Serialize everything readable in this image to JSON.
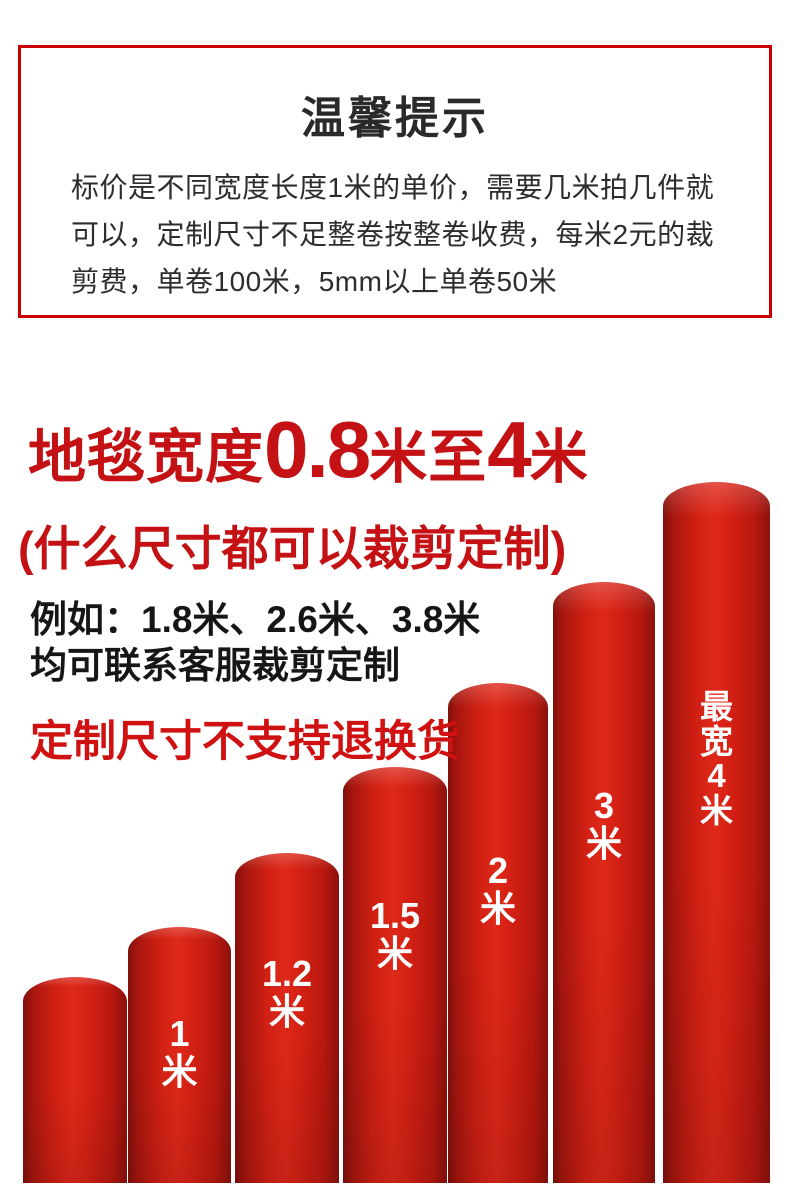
{
  "notice": {
    "title": "温馨提示",
    "body": "标价是不同宽度长度1米的单价，需要几米拍几件就可以，定制尺寸不足整卷按整卷收费，每米2元的裁剪费，单卷100米，5mm以上单卷50米"
  },
  "headline": {
    "prefix": "地毯宽度",
    "min_width": "0.8",
    "connector": "米至",
    "max_width": "4",
    "unit": "米",
    "subtitle": "(什么尺寸都可以裁剪定制)"
  },
  "examples": {
    "line1": "例如：1.8米、2.6米、3.8米",
    "line2": "均可联系客服裁剪定制"
  },
  "warning": "定制尺寸不支持退换货",
  "rolls": [
    {
      "label": ""
    },
    {
      "label": "1\n米"
    },
    {
      "label": "1.2\n米"
    },
    {
      "label": "1.5\n米"
    },
    {
      "label": "2\n米"
    },
    {
      "label": "3\n米"
    },
    {
      "label": "最\n宽\n4\n米"
    }
  ],
  "colors": {
    "accent_red": "#c31114",
    "border_red": "#c80000",
    "warning_red": "#d01111",
    "roll_red": "#d62014",
    "text_dark": "#2d2d2d"
  }
}
